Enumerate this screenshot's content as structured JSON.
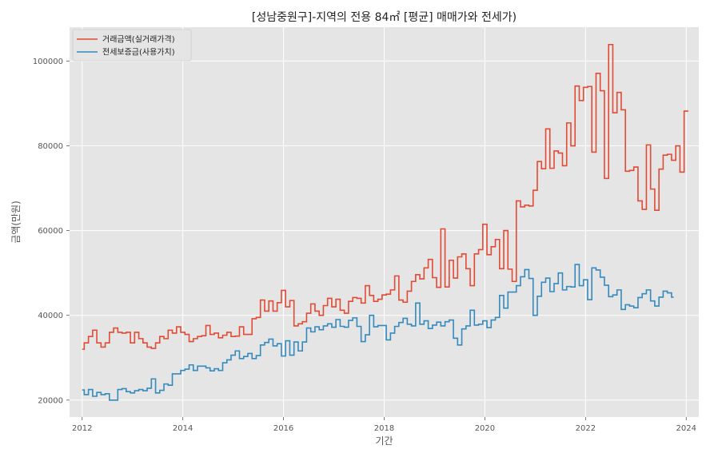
{
  "chart_data": {
    "type": "line",
    "title": "[성남중원구]-지역의 전용 84㎡ [평균] 매매가와 전세가)",
    "xlabel": "기간",
    "ylabel": "금액(만원)",
    "xlim": [
      2011.75,
      2024.25
    ],
    "ylim": [
      16000,
      108000
    ],
    "x_ticks": [
      2012,
      2014,
      2016,
      2018,
      2020,
      2022,
      2024
    ],
    "x_tick_labels": [
      "2012",
      "2014",
      "2016",
      "2018",
      "2020",
      "2022",
      "2024"
    ],
    "y_ticks": [
      20000,
      40000,
      60000,
      80000,
      100000
    ],
    "y_tick_labels": [
      "20000",
      "40000",
      "60000",
      "80000",
      "100000"
    ],
    "grid": true,
    "legend_position": "top-left",
    "x_start": "2012-01",
    "x_step": "monthly",
    "series": [
      {
        "name": "거래금액(실거래가격)",
        "color": "#E24A33",
        "step": true,
        "values": [
          32000,
          33500,
          33500,
          35000,
          35000,
          36500,
          36500,
          33500,
          33500,
          32500,
          32500,
          33500,
          33500,
          36000,
          36000,
          37000,
          37000,
          36000,
          36000,
          35800,
          35800,
          36000,
          36000,
          33500,
          33500,
          36000,
          36000,
          34500,
          34500,
          33500,
          33500,
          32500,
          32500,
          32200,
          32200,
          33500,
          33500,
          35000,
          35000,
          34500,
          34500,
          36500,
          36500,
          35800,
          35800,
          37300,
          37300,
          36000,
          36000,
          35500,
          35500,
          33800,
          33800,
          34500,
          34500,
          35000,
          35000,
          35200,
          35200,
          37600,
          37600,
          35500,
          35500,
          35800,
          35800,
          34700,
          34700,
          35300,
          35300,
          36000,
          36000,
          35000,
          35000,
          35100,
          35100,
          37300,
          37300,
          35500,
          35500,
          35500,
          35500,
          39200,
          39200,
          39500,
          39500,
          43600,
          43600,
          41000,
          41000,
          43400,
          43400,
          41000,
          41000,
          43000,
          43000,
          45900,
          45900,
          42000,
          42000,
          43500,
          43500,
          37500,
          37500,
          38000,
          38000,
          38500,
          38500,
          40500,
          40500,
          42700,
          42700,
          41000,
          41000,
          40000,
          40000,
          42300,
          42300,
          44000,
          44000,
          42000,
          42000,
          43800,
          43800,
          41200,
          41200,
          40500,
          40500,
          43300,
          43300,
          44200,
          44200,
          44000,
          44000,
          42900,
          42900,
          47000,
          47000,
          44700,
          44700,
          43300,
          43300,
          43800,
          43800,
          44800,
          44800,
          45000,
          45000,
          46000,
          46000,
          49300,
          49300,
          43600,
          43600,
          43100,
          43100,
          45700,
          45700,
          48000,
          48000,
          49600,
          49600,
          48600,
          48600,
          51200,
          51200,
          53200,
          53200,
          48900,
          48900,
          46600,
          46600,
          60400,
          60400,
          46700,
          46700,
          53000,
          53000,
          48800,
          48800,
          53800,
          53800,
          54500,
          54500,
          51000,
          51000,
          47000,
          47000,
          54500,
          54500,
          55500,
          55500,
          61500,
          61500,
          54300,
          54300,
          56200,
          56200,
          57900,
          57900,
          51000,
          51000,
          60000,
          60000,
          50900,
          50900,
          48000,
          48000,
          67000,
          67000,
          65600,
          65600,
          66000,
          66000,
          65800,
          65800,
          69500,
          69500,
          76300,
          76300,
          74600,
          74600,
          84000,
          84000,
          74700,
          74700,
          78800,
          78800,
          78300,
          78300,
          75300,
          75300,
          85400,
          85400,
          80000,
          80000,
          94100,
          94100,
          90700,
          90700,
          93800,
          93800,
          94000,
          94000,
          78500,
          78500,
          97100,
          97100,
          93000,
          93000,
          72300,
          72300,
          103900,
          103900,
          87800,
          87800,
          92600,
          92600,
          88500,
          88500,
          74000,
          74000,
          74200,
          74200,
          75000,
          75000,
          67000,
          67000,
          65000,
          65000,
          80200,
          80200,
          69800,
          69800,
          64800,
          64800,
          74500,
          74500,
          77800,
          77800,
          78000,
          78000,
          76600,
          76600,
          80000,
          80000,
          73800,
          73800,
          88200,
          88200,
          88200
        ]
      },
      {
        "name": "전세보증금(사용가치)",
        "color": "#348ABD",
        "step": true,
        "values": [
          22400,
          21300,
          21300,
          22500,
          22500,
          20900,
          20900,
          21800,
          21800,
          21300,
          21300,
          21500,
          21500,
          20000,
          20000,
          20000,
          20000,
          22500,
          22500,
          22700,
          22700,
          22000,
          22000,
          21700,
          21700,
          22200,
          22200,
          22500,
          22500,
          22200,
          22200,
          22800,
          22800,
          25000,
          25000,
          21700,
          21700,
          22300,
          22300,
          23800,
          23800,
          23500,
          23500,
          26200,
          26200,
          26200,
          26200,
          27000,
          27000,
          27300,
          27300,
          28300,
          28300,
          27000,
          27000,
          28000,
          28000,
          28000,
          28000,
          27600,
          27600,
          26900,
          26900,
          27400,
          27400,
          27000,
          27000,
          28800,
          28800,
          29500,
          29500,
          30600,
          30600,
          31600,
          31600,
          29800,
          29800,
          30300,
          30300,
          31000,
          31000,
          29800,
          29800,
          30500,
          30500,
          33000,
          33000,
          33600,
          33600,
          34400,
          34400,
          32800,
          32800,
          33300,
          33300,
          30400,
          30400,
          34000,
          34000,
          30600,
          30600,
          33700,
          33700,
          31600,
          31600,
          33700,
          33700,
          37000,
          37000,
          36100,
          36100,
          37300,
          37300,
          36600,
          36600,
          37500,
          37500,
          38000,
          38000,
          37200,
          37200,
          39000,
          39000,
          37400,
          37400,
          37200,
          37200,
          38800,
          38800,
          39400,
          39400,
          37400,
          37400,
          33800,
          33800,
          35400,
          35400,
          40000,
          40000,
          37300,
          37300,
          37600,
          37600,
          37600,
          37600,
          34200,
          34200,
          35800,
          35800,
          37400,
          37400,
          38300,
          38300,
          39300,
          39300,
          37900,
          37900,
          37500,
          37500,
          42900,
          42900,
          37900,
          37900,
          38700,
          38700,
          36900,
          36900,
          37700,
          37700,
          38400,
          38400,
          37500,
          37500,
          38500,
          38500,
          38900,
          38900,
          34600,
          34600,
          33000,
          33000,
          36800,
          36800,
          37500,
          37500,
          41200,
          41200,
          37700,
          37700,
          37900,
          37900,
          38700,
          38700,
          37100,
          37100,
          38900,
          38900,
          39500,
          39500,
          44700,
          44700,
          41700,
          41700,
          45500,
          45500,
          45500,
          45500,
          47000,
          47000,
          49100,
          49100,
          50800,
          50800,
          48700,
          48700,
          40000,
          40000,
          44500,
          44500,
          47800,
          47800,
          48800,
          48800,
          45600,
          45600,
          47500,
          47500,
          50000,
          50000,
          46000,
          46000,
          46800,
          46800,
          46700,
          46700,
          52000,
          52000,
          47000,
          47000,
          48400,
          48400,
          43700,
          43700,
          51200,
          51200,
          50700,
          50700,
          49000,
          49000,
          47100,
          47100,
          44400,
          44400,
          44800,
          44800,
          46000,
          46000,
          41400,
          41400,
          42500,
          42500,
          42200,
          42200,
          41800,
          41800,
          44200,
          44200,
          45100,
          45100,
          46000,
          46000,
          43400,
          43400,
          42200,
          42200,
          44300,
          44300,
          45700,
          45700,
          45300,
          45300,
          44300,
          44300
        ]
      }
    ]
  }
}
